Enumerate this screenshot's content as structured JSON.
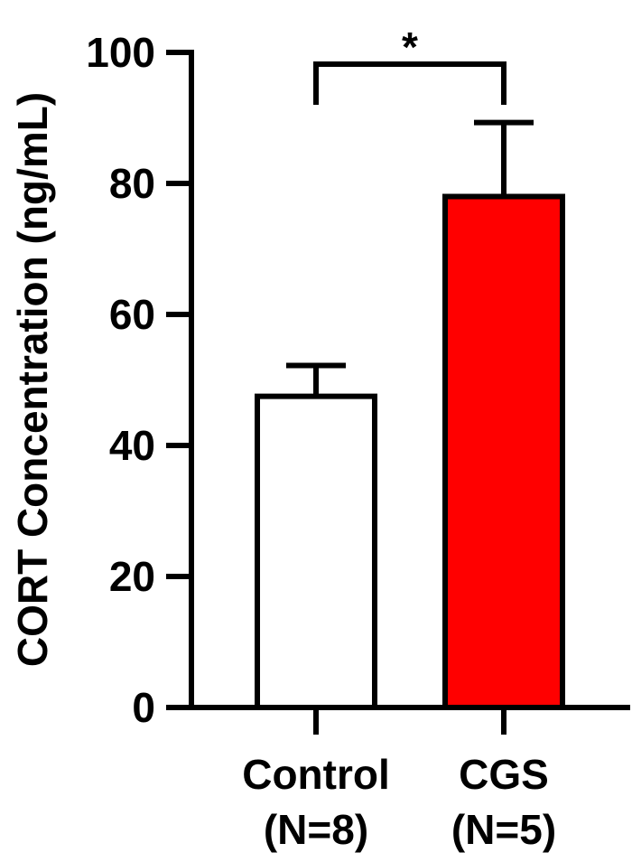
{
  "chart_data": {
    "type": "bar",
    "title": "",
    "xlabel": "",
    "ylabel": "CORT Concentration (ng/mL)",
    "ylim": [
      0,
      100
    ],
    "yticks": [
      0,
      20,
      40,
      60,
      80,
      100
    ],
    "ytick_labels": [
      "0",
      "20",
      "40",
      "60",
      "80",
      "100"
    ],
    "categories": [
      {
        "label": "Control",
        "sublabel": "(N=8)"
      },
      {
        "label": "CGS",
        "sublabel": "(N=5)"
      }
    ],
    "values": [
      47.5,
      78
    ],
    "error_upper": [
      52.2,
      89.3
    ],
    "colors": [
      "#ffffff",
      "#ff0000"
    ],
    "edge_color": "#000000",
    "significance": {
      "text": "*",
      "between": [
        0,
        1
      ]
    },
    "grid": false
  }
}
